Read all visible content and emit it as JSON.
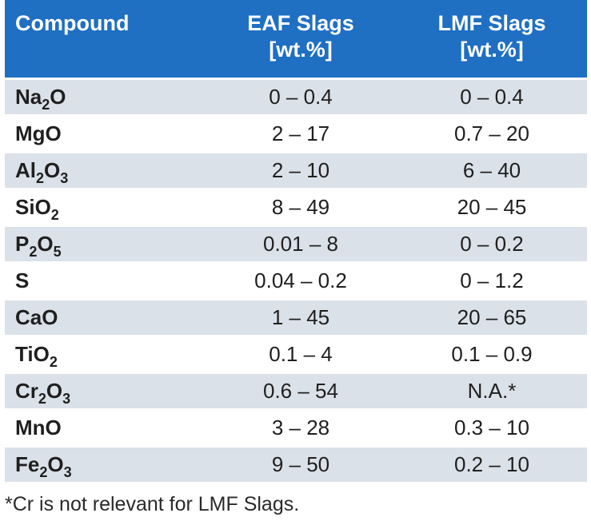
{
  "table": {
    "headers": {
      "compound": "Compound",
      "eaf_line1": "EAF Slags",
      "eaf_line2": "[wt.%]",
      "lmf_line1": "LMF Slags",
      "lmf_line2": "[wt.%]"
    },
    "rows": [
      {
        "parts": [
          {
            "t": "Na"
          },
          {
            "t": "2",
            "sub": true
          },
          {
            "t": "O"
          }
        ],
        "eaf": "0 – 0.4",
        "lmf": "0 – 0.4"
      },
      {
        "parts": [
          {
            "t": "MgO"
          }
        ],
        "eaf": "2 – 17",
        "lmf": "0.7 – 20"
      },
      {
        "parts": [
          {
            "t": "Al"
          },
          {
            "t": "2",
            "sub": true
          },
          {
            "t": "O"
          },
          {
            "t": "3",
            "sub": true
          }
        ],
        "eaf": "2 – 10",
        "lmf": "6 – 40"
      },
      {
        "parts": [
          {
            "t": "SiO"
          },
          {
            "t": "2",
            "sub": true
          }
        ],
        "eaf": "8 – 49",
        "lmf": "20 – 45"
      },
      {
        "parts": [
          {
            "t": "P"
          },
          {
            "t": "2",
            "sub": true
          },
          {
            "t": "O"
          },
          {
            "t": "5",
            "sub": true
          }
        ],
        "eaf": "0.01 – 8",
        "lmf": "0 – 0.2"
      },
      {
        "parts": [
          {
            "t": "S"
          }
        ],
        "eaf": "0.04 – 0.2",
        "lmf": "0 – 1.2"
      },
      {
        "parts": [
          {
            "t": "CaO"
          }
        ],
        "eaf": "1 – 45",
        "lmf": "20 – 65"
      },
      {
        "parts": [
          {
            "t": "TiO"
          },
          {
            "t": "2",
            "sub": true
          }
        ],
        "eaf": "0.1 – 4",
        "lmf": "0.1 – 0.9"
      },
      {
        "parts": [
          {
            "t": "Cr"
          },
          {
            "t": "2",
            "sub": true
          },
          {
            "t": "O"
          },
          {
            "t": "3",
            "sub": true
          }
        ],
        "eaf": "0.6 – 54",
        "lmf": "N.A.*"
      },
      {
        "parts": [
          {
            "t": "MnO"
          }
        ],
        "eaf": "3 – 28",
        "lmf": "0.3 – 10"
      },
      {
        "parts": [
          {
            "t": "Fe"
          },
          {
            "t": "2",
            "sub": true
          },
          {
            "t": "O"
          },
          {
            "t": "3",
            "sub": true
          }
        ],
        "eaf": "9 – 50",
        "lmf": "0.2 – 10"
      }
    ]
  },
  "footnote": "*Cr is not relevant for LMF Slags.",
  "colors": {
    "header_bg": "#1f6fc2",
    "stripe_bg": "#dbe1e8"
  }
}
